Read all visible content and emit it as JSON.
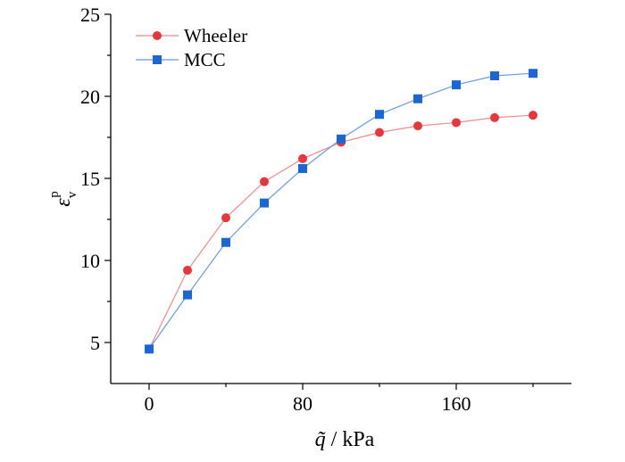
{
  "chart_data": {
    "type": "line",
    "title": "",
    "xlabel_symbol": "q̃",
    "xlabel_unit": " / kPa",
    "ylabel_symbol": "ε",
    "ylabel_sub": "v",
    "ylabel_sup": "p",
    "xlim": [
      -20,
      220
    ],
    "ylim": [
      2.5,
      25
    ],
    "x_ticks": [
      0,
      80,
      160
    ],
    "y_ticks": [
      5,
      10,
      15,
      20,
      25
    ],
    "x": [
      0,
      20,
      40,
      60,
      80,
      100,
      120,
      140,
      160,
      180,
      200
    ],
    "legend_position": "top-left",
    "grid": false,
    "series": [
      {
        "name": "Wheeler",
        "marker": "circle",
        "color": "#e8373b",
        "line_color": "#f08a8c",
        "values": [
          4.6,
          9.4,
          12.6,
          14.8,
          16.2,
          17.2,
          17.8,
          18.2,
          18.4,
          18.7,
          18.85
        ]
      },
      {
        "name": "MCC",
        "marker": "square",
        "color": "#1a66d6",
        "line_color": "#6b9be0",
        "values": [
          4.6,
          7.9,
          11.1,
          13.5,
          15.6,
          17.4,
          18.9,
          19.85,
          20.7,
          21.25,
          21.4
        ]
      }
    ]
  }
}
